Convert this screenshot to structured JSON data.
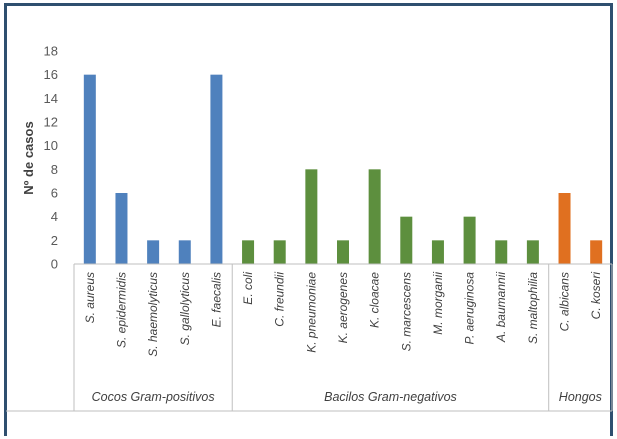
{
  "chart_data": {
    "type": "bar",
    "title": "",
    "xlabel": "",
    "ylabel": "Nº de casos",
    "ylim": [
      0,
      18
    ],
    "yticks": [
      0,
      2,
      4,
      6,
      8,
      10,
      12,
      14,
      16,
      18
    ],
    "grid": false,
    "legend": "none",
    "categories": [
      "S. aureus",
      "S. epidermidis",
      "S. haemolyticus",
      "S. gallolyticus",
      "E. faecalis",
      "E. coli",
      "C. freundii",
      "K. pneumoniae",
      "K. aerogenes",
      "K. cloacae",
      "S. marcescens",
      "M. morganii",
      "P. aeruginosa",
      "A. baumannii",
      "S. maltophilia",
      "C. albicans",
      "C. koseri"
    ],
    "values": [
      16,
      6,
      2,
      2,
      16,
      2,
      2,
      8,
      2,
      8,
      4,
      2,
      4,
      2,
      2,
      6,
      2
    ],
    "groups": [
      {
        "label": "Cocos Gram-positivos",
        "start": 0,
        "end": 4,
        "color": "#4f81bd"
      },
      {
        "label": "Bacilos Gram-negativos",
        "start": 5,
        "end": 14,
        "color": "#5d8f3e"
      },
      {
        "label": "Hongos",
        "start": 15,
        "end": 16,
        "color": "#e07020"
      }
    ]
  }
}
